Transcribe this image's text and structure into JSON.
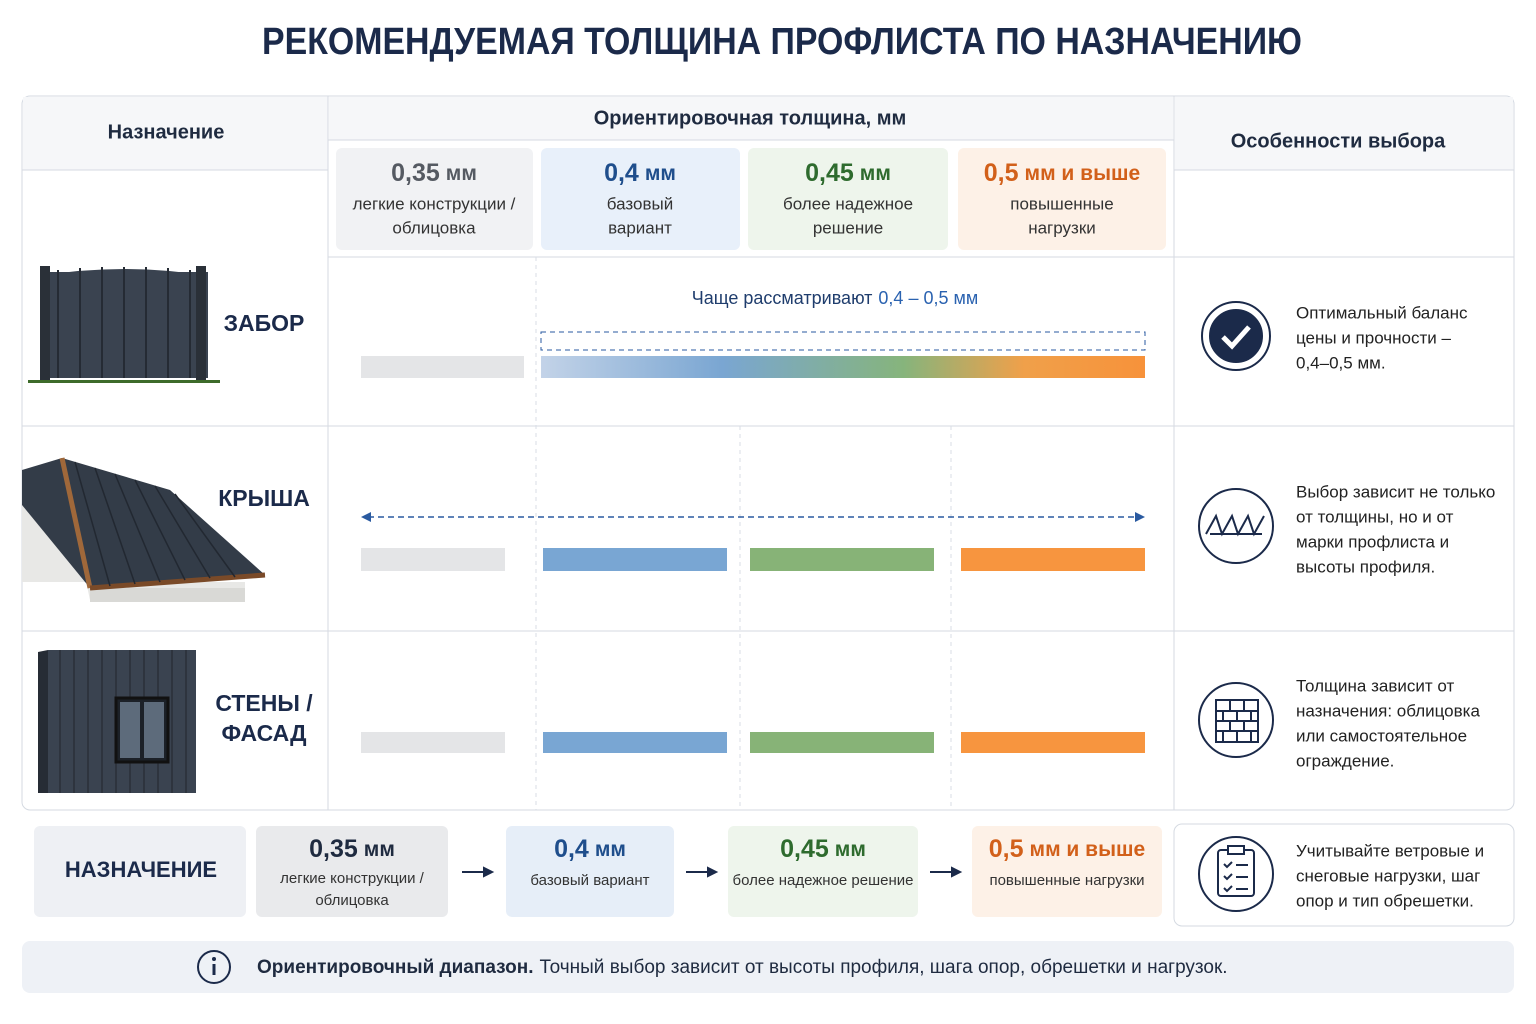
{
  "title": "РЕКОМЕНДУЕМАЯ ТОЛЩИНА ПРОФЛИСТА ПО НАЗНАЧЕНИЮ",
  "header": {
    "purpose": "Назначение",
    "thickness": "Ориентировочная толщина, мм",
    "features": "Особенности выбора"
  },
  "columns": [
    {
      "value": "0,35",
      "unit": "мм",
      "desc": [
        "легкие конструкции /",
        "облицовка"
      ]
    },
    {
      "value": "0,4",
      "unit": "мм",
      "desc": [
        "базовый",
        "вариант"
      ]
    },
    {
      "value": "0,45",
      "unit": "мм",
      "desc": [
        "более надежное",
        "решение"
      ]
    },
    {
      "value": "0,5",
      "unit": "мм и выше",
      "desc": [
        "повышенные",
        "нагрузки"
      ]
    }
  ],
  "rows": [
    {
      "name": [
        "ЗАБОР"
      ],
      "note": {
        "text": "Чаще рассматривают",
        "range": "0,4 – 0,5 мм"
      },
      "feature": [
        "Оптимальный баланс",
        "цены и прочности –",
        "0,4–0,5 мм."
      ]
    },
    {
      "name": [
        "КРЫША"
      ],
      "feature": [
        "Выбор зависит не только",
        "от толщины, но и от",
        "марки профлиста и",
        "высоты профиля."
      ]
    },
    {
      "name": [
        "СТЕНЫ /",
        "ФАСАД"
      ],
      "feature": [
        "Толщина зависит от",
        "назначения: облицовка",
        "или самостоятельное",
        "ограждение."
      ]
    }
  ],
  "legend": {
    "label": "НАЗНАЧЕНИЕ",
    "items": [
      {
        "value": "0,35",
        "unit": "мм",
        "desc": [
          "легкие конструкции /",
          "облицовка"
        ]
      },
      {
        "value": "0,4",
        "unit": "мм",
        "desc": [
          "базовый вариант"
        ]
      },
      {
        "value": "0,45",
        "unit": "мм",
        "desc": [
          "более надежное решение"
        ]
      },
      {
        "value": "0,5",
        "unit": "мм и выше",
        "desc": [
          "повышенные нагрузки"
        ]
      }
    ],
    "tip": [
      "Учитывайте ветровые и",
      "снеговые нагрузки, шаг",
      "опор и тип обрешетки."
    ]
  },
  "footer": {
    "bold": "Ориентировочный диапазон.",
    "text": "Точный выбор зависит от высоты профиля, шага опор, обрешетки и нагрузок."
  }
}
